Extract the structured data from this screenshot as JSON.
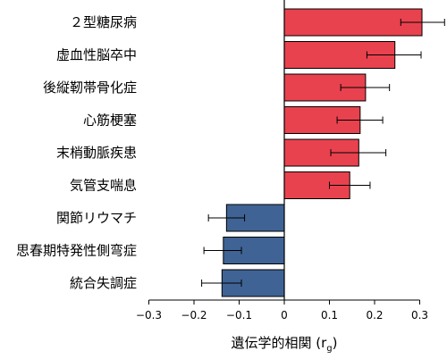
{
  "chart_data": {
    "type": "bar",
    "orientation": "horizontal",
    "xlabel": "遺伝学的相関 (r",
    "xlabel_subscript": "g",
    "xlabel_close": ")",
    "xlim": [
      -0.3,
      0.3
    ],
    "xticks": [
      -0.3,
      -0.2,
      -0.1,
      0,
      0.1,
      0.2,
      0.3
    ],
    "xtick_labels": [
      "−0.3",
      "−0.2",
      "−0.1",
      "0",
      "0.1",
      "0.2",
      "0.3"
    ],
    "grid": false,
    "categories": [
      "２型糖尿病",
      "虚血性脳卒中",
      "後縦靭帯骨化症",
      "心筋梗塞",
      "末梢動脈疾患",
      "気管支喘息",
      "関節リウマチ",
      "思春期特発性側弯症",
      "統合失調症"
    ],
    "values": [
      0.305,
      0.245,
      0.18,
      0.168,
      0.165,
      0.145,
      -0.128,
      -0.135,
      -0.138
    ],
    "error_low": [
      0.258,
      0.183,
      0.125,
      0.117,
      0.103,
      0.1,
      -0.168,
      -0.178,
      -0.183
    ],
    "error_high": [
      0.355,
      0.303,
      0.233,
      0.218,
      0.225,
      0.19,
      -0.088,
      -0.095,
      -0.095
    ],
    "colors": {
      "positive": "#e8424e",
      "negative": "#3f6394",
      "bar_stroke": "#000000",
      "axis": "#000000"
    }
  }
}
